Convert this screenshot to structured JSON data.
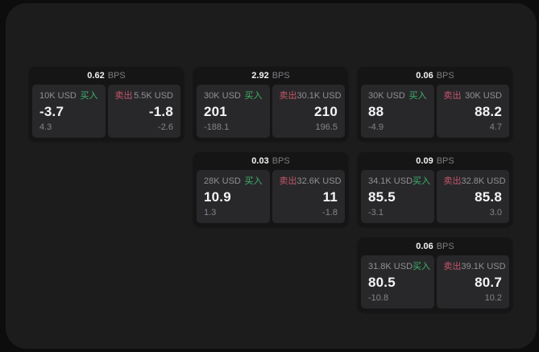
{
  "window": {
    "background": "#0d0d0e",
    "panel_background": "#1c1c1d"
  },
  "labels": {
    "bps": "BPS",
    "buy": "买入",
    "sell": "卖出"
  },
  "colors": {
    "buy_accent": "#3eb36b",
    "sell_accent": "#c4556a",
    "card_background": "#151516",
    "tile_background": "#28282a",
    "value_text": "#f4f4f5",
    "muted_text": "#909094"
  },
  "cards": [
    {
      "bps": "0.62",
      "buy": {
        "amount": "10K USD",
        "value": "-3.7",
        "sub": "4.3"
      },
      "sell": {
        "amount": "5.5K USD",
        "value": "-1.8",
        "sub": "-2.6"
      }
    },
    {
      "bps": "2.92",
      "buy": {
        "amount": "30K USD",
        "value": "201",
        "sub": "-188.1"
      },
      "sell": {
        "amount": "30.1K USD",
        "value": "210",
        "sub": "196.5"
      }
    },
    {
      "bps": "0.06",
      "buy": {
        "amount": "30K USD",
        "value": "88",
        "sub": "-4.9"
      },
      "sell": {
        "amount": "30K USD",
        "value": "88.2",
        "sub": "4.7"
      }
    },
    {
      "bps": "0.03",
      "buy": {
        "amount": "28K USD",
        "value": "10.9",
        "sub": "1.3"
      },
      "sell": {
        "amount": "32.6K USD",
        "value": "11",
        "sub": "-1.8"
      }
    },
    {
      "bps": "0.09",
      "buy": {
        "amount": "34.1K USD",
        "value": "85.5",
        "sub": "-3.1"
      },
      "sell": {
        "amount": "32.8K USD",
        "value": "85.8",
        "sub": "3.0"
      }
    },
    {
      "bps": "0.06",
      "buy": {
        "amount": "31.8K USD",
        "value": "80.5",
        "sub": "-10.8"
      },
      "sell": {
        "amount": "39.1K USD",
        "value": "80.7",
        "sub": "10.2"
      }
    }
  ]
}
